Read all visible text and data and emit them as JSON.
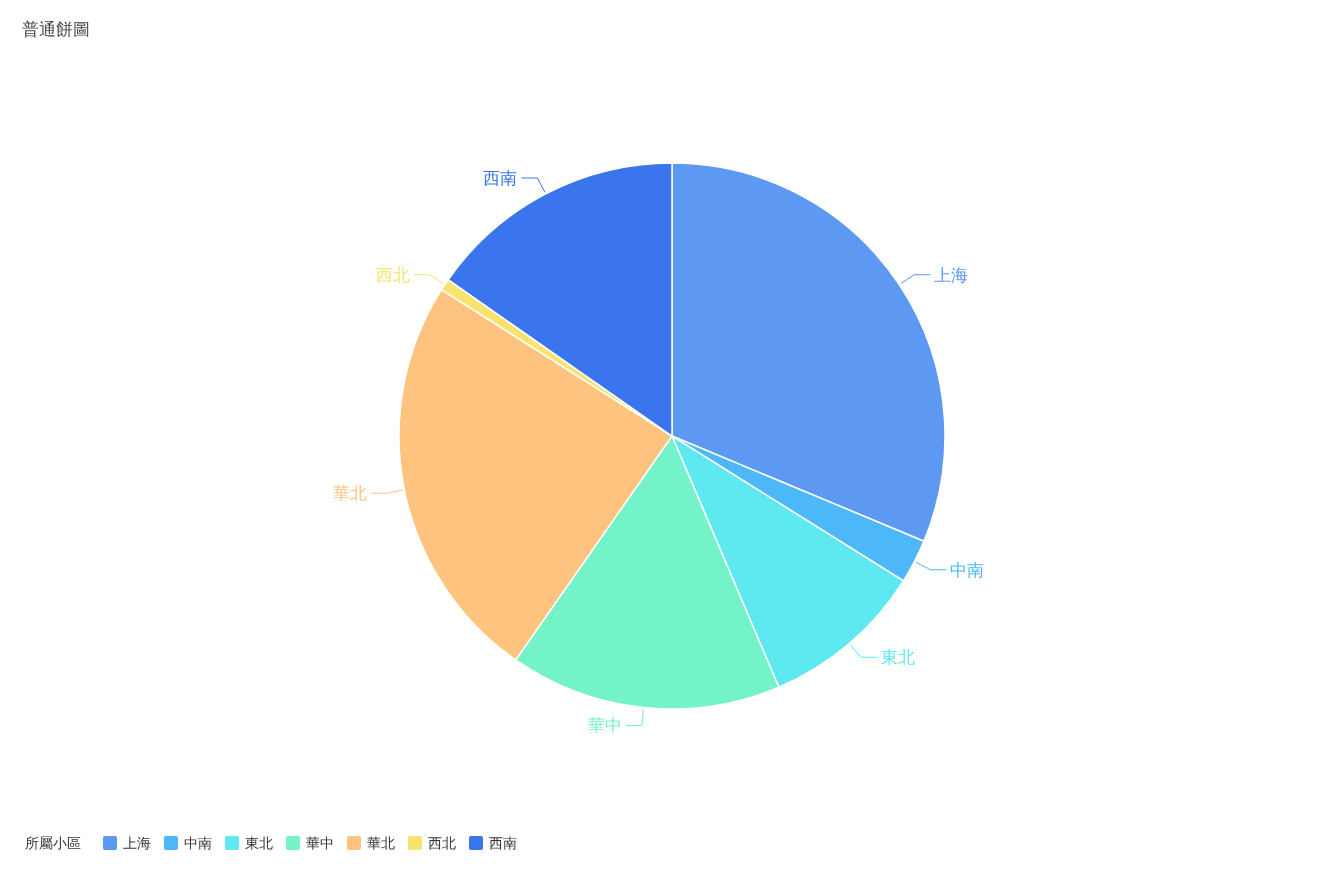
{
  "chart_data": {
    "type": "pie",
    "title": "普通餅圖",
    "legend_title": "所屬小區",
    "legend": "bottom left",
    "categories": [
      "上海",
      "中南",
      "東北",
      "華中",
      "華北",
      "西北",
      "西南"
    ],
    "values": [
      31.3,
      2.6,
      9.7,
      16.1,
      24.3,
      0.7,
      15.3
    ],
    "colors": [
      "#5d98f3",
      "#4db8f8",
      "#5ee8f0",
      "#74f2c8",
      "#ffc380",
      "#f8e36e",
      "#3a75ee"
    ]
  }
}
